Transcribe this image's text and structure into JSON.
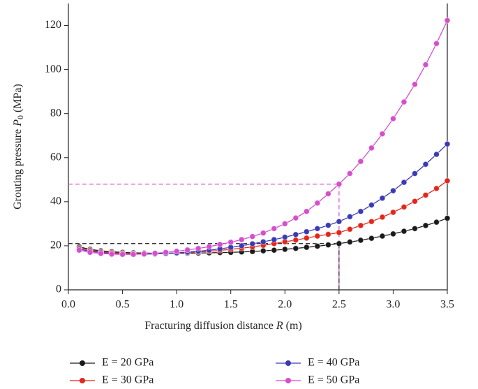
{
  "chart_data": {
    "type": "line",
    "xlabel": [
      "Fracturing diffusion distance ",
      "R",
      " (m)"
    ],
    "ylabel": [
      "Grouting pressure ",
      "P",
      "0",
      " (MPa)"
    ],
    "x": [
      0.1,
      0.2,
      0.3,
      0.4,
      0.5,
      0.6,
      0.7,
      0.8,
      0.9,
      1.0,
      1.1,
      1.2,
      1.3,
      1.4,
      1.5,
      1.6,
      1.7,
      1.8,
      1.9,
      2.0,
      2.1,
      2.2,
      2.3,
      2.4,
      2.5,
      2.6,
      2.7,
      2.8,
      2.9,
      3.0,
      3.1,
      3.2,
      3.3,
      3.4,
      3.5
    ],
    "series": [
      {
        "name": "E = 20 GPa",
        "color": "#1a1a1a",
        "values": [
          19.5,
          18.4,
          17.7,
          17.3,
          17.0,
          16.8,
          16.7,
          16.6,
          16.6,
          16.6,
          16.6,
          16.7,
          16.8,
          16.9,
          17.0,
          17.2,
          17.4,
          17.7,
          18.0,
          18.4,
          18.8,
          19.3,
          19.8,
          20.4,
          21.0,
          21.7,
          22.5,
          23.4,
          24.4,
          25.4,
          26.6,
          27.8,
          29.2,
          30.7,
          32.5
        ]
      },
      {
        "name": "E = 30 GPa",
        "color": "#e3261b",
        "values": [
          19.0,
          18.0,
          17.3,
          16.9,
          16.6,
          16.4,
          16.4,
          16.4,
          16.5,
          16.7,
          16.9,
          17.2,
          17.5,
          17.9,
          18.4,
          18.9,
          19.5,
          20.2,
          21.0,
          21.8,
          22.6,
          23.5,
          24.4,
          25.2,
          26.0,
          27.5,
          29.2,
          31.0,
          33.0,
          35.2,
          37.6,
          40.2,
          43.0,
          46.0,
          49.5
        ]
      },
      {
        "name": "E = 40 GPa",
        "color": "#3a3ab3",
        "values": [
          18.5,
          17.5,
          16.9,
          16.5,
          16.3,
          16.2,
          16.2,
          16.3,
          16.5,
          16.8,
          17.1,
          17.5,
          18.0,
          18.6,
          19.3,
          20.0,
          20.9,
          21.8,
          22.8,
          23.9,
          25.1,
          26.4,
          27.8,
          29.3,
          31.0,
          33.2,
          35.6,
          38.5,
          41.6,
          45.0,
          48.8,
          52.8,
          57.0,
          61.5,
          66.2
        ]
      },
      {
        "name": "E = 50 GPa",
        "color": "#d44fcc",
        "values": [
          18.0,
          17.0,
          16.5,
          16.2,
          16.1,
          16.1,
          16.3,
          16.6,
          17.0,
          17.5,
          18.1,
          18.8,
          19.6,
          20.6,
          21.6,
          22.8,
          24.2,
          25.8,
          27.8,
          30.0,
          32.6,
          35.6,
          39.4,
          43.6,
          48.0,
          52.8,
          58.3,
          64.4,
          70.8,
          77.7,
          85.3,
          93.3,
          102.2,
          111.8,
          122.3
        ]
      }
    ],
    "reference_lines": [
      {
        "x": 2.5,
        "y": 48,
        "color": "#d44fcc"
      },
      {
        "x": 2.5,
        "y": 21,
        "color": "#1a1a1a"
      }
    ],
    "xlim": [
      0,
      3.5
    ],
    "xticks": [
      {
        "value": 0,
        "label": "0.0"
      },
      0.5,
      {
        "value": 1,
        "label": "1.0"
      },
      1.5,
      {
        "value": 2,
        "label": "2.0"
      },
      2.5,
      {
        "value": 3,
        "label": "3.0"
      },
      3.5
    ],
    "ylim": [
      0,
      130
    ],
    "yticks": [
      0,
      20,
      40,
      60,
      80,
      100,
      120
    ],
    "legend": "bottom"
  }
}
